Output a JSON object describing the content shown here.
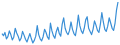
{
  "chart_data": {
    "type": "line",
    "color": "#3a8fd6",
    "tick_labels": false,
    "grid": false,
    "xlim": [
      0,
      79
    ],
    "ylim": [
      22,
      100
    ],
    "values": [
      40,
      36,
      42,
      30,
      34,
      45,
      38,
      28,
      33,
      50,
      41,
      35,
      26,
      31,
      44,
      37,
      29,
      24,
      32,
      40,
      30,
      22,
      27,
      35,
      55,
      38,
      30,
      26,
      34,
      48,
      42,
      33,
      29,
      60,
      45,
      36,
      31,
      44,
      52,
      40,
      35,
      58,
      70,
      50,
      42,
      38,
      46,
      62,
      48,
      40,
      36,
      52,
      75,
      55,
      45,
      40,
      50,
      66,
      72,
      50,
      44,
      38,
      48,
      64,
      56,
      46,
      42,
      58,
      80,
      62,
      48,
      44,
      54,
      70,
      60,
      50,
      46,
      60,
      85,
      100
    ]
  }
}
